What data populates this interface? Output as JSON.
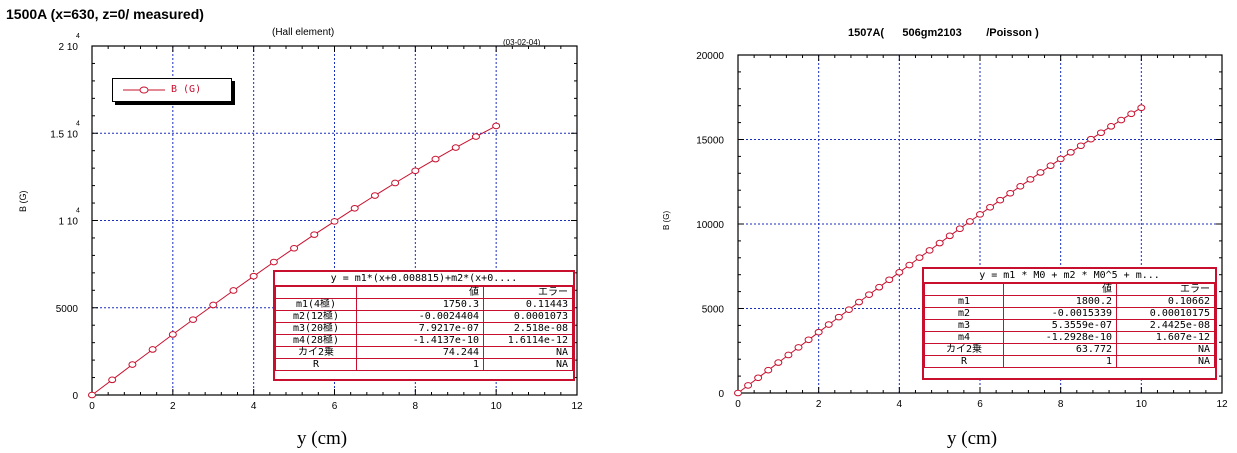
{
  "left": {
    "title": "1500A (x=630, z=0/ measured)",
    "subtitle": "(Hall element)",
    "date": "(03-02-04)",
    "ylabel": "B  (G)",
    "xlabel": "y   (cm)",
    "legend": "B (G)",
    "fit": {
      "equation": "y = m1*(x+0.008815)+m2*(x+0....",
      "header": [
        "",
        "値",
        "エラー"
      ],
      "rows": [
        [
          "m1(4極)",
          "1750.3",
          "0.11443"
        ],
        [
          "m2(12極)",
          "-0.0024404",
          "0.0001073"
        ],
        [
          "m3(20極)",
          "7.9217e-07",
          "2.518e-08"
        ],
        [
          "m4(28極)",
          "-1.4137e-10",
          "1.6114e-12"
        ],
        [
          "カイ2乗",
          "74.244",
          "NA"
        ],
        [
          "R",
          "1",
          "NA"
        ]
      ]
    }
  },
  "right": {
    "title": "1507A(      506gm2103        /Poisson )",
    "ylabel": "B (G)",
    "xlabel": "y   (cm)",
    "fit": {
      "equation": "y = m1 * M0 + m2 * M0^5 + m...",
      "header": [
        "",
        "値",
        "エラー"
      ],
      "rows": [
        [
          "m1",
          "1800.2",
          "0.10662"
        ],
        [
          "m2",
          "-0.0015339",
          "0.00010175"
        ],
        [
          "m3",
          "5.3559e-07",
          "2.4425e-08"
        ],
        [
          "m4",
          "-1.2928e-10",
          "1.607e-12"
        ],
        [
          "カイ2乗",
          "63.772",
          "NA"
        ],
        [
          "R",
          "1",
          "NA"
        ]
      ]
    }
  },
  "chart_data": [
    {
      "type": "line",
      "title": "1500A (x=630, z=0/ measured)",
      "xlabel": "y   (cm)",
      "ylabel": "B  (G)",
      "xlim": [
        0,
        12
      ],
      "ylim": [
        0,
        20000
      ],
      "xticks": [
        "0",
        "2",
        "4",
        "6",
        "8",
        "10",
        "12"
      ],
      "yticks": [
        "0",
        "5000",
        "1 10",
        "1.5 10",
        "2 10"
      ],
      "ytick_exponents": [
        "",
        "",
        "4",
        "4",
        "4"
      ],
      "grid": true,
      "legend_position": "top-left",
      "series": [
        {
          "name": "B (G)",
          "color": "#c8102e",
          "x": [
            0,
            0.5,
            1,
            1.5,
            2,
            2.5,
            3,
            3.5,
            4,
            4.5,
            5,
            5.5,
            6,
            6.5,
            7,
            7.5,
            8,
            8.5,
            9,
            9.5,
            10
          ],
          "y": [
            0,
            870,
            1745,
            2610,
            3470,
            4320,
            5160,
            5990,
            6810,
            7620,
            8410,
            9190,
            9950,
            10700,
            11430,
            12150,
            12850,
            13520,
            14180,
            14810,
            15420
          ]
        }
      ]
    },
    {
      "type": "line",
      "title": "1507A(      506gm2103        /Poisson )",
      "xlabel": "y   (cm)",
      "ylabel": "B (G)",
      "xlim": [
        0,
        12
      ],
      "ylim": [
        0,
        20000
      ],
      "xticks": [
        "0",
        "2",
        "4",
        "6",
        "8",
        "10",
        "12"
      ],
      "yticks": [
        "0",
        "5000",
        "10000",
        "15000",
        "20000"
      ],
      "ytick_exponents": [
        "",
        "",
        "",
        "",
        ""
      ],
      "grid": true,
      "series": [
        {
          "color": "#c8102e",
          "x": [
            0,
            0.25,
            0.5,
            0.75,
            1,
            1.25,
            1.5,
            1.75,
            2,
            2.25,
            2.5,
            2.75,
            3,
            3.25,
            3.5,
            3.75,
            4,
            4.25,
            4.5,
            4.75,
            5,
            5.25,
            5.5,
            5.75,
            6,
            6.25,
            6.5,
            6.75,
            7,
            7.25,
            7.5,
            7.75,
            8,
            8.25,
            8.5,
            8.75,
            9,
            9.25,
            9.5,
            9.75,
            10
          ],
          "y": [
            0,
            450,
            900,
            1350,
            1800,
            2250,
            2700,
            3150,
            3600,
            4050,
            4490,
            4930,
            5380,
            5820,
            6260,
            6700,
            7140,
            7570,
            8010,
            8440,
            8870,
            9300,
            9720,
            10150,
            10570,
            10990,
            11410,
            11820,
            12230,
            12640,
            13050,
            13450,
            13850,
            14240,
            14630,
            15020,
            15400,
            15780,
            16150,
            16520,
            16880
          ]
        }
      ]
    }
  ]
}
